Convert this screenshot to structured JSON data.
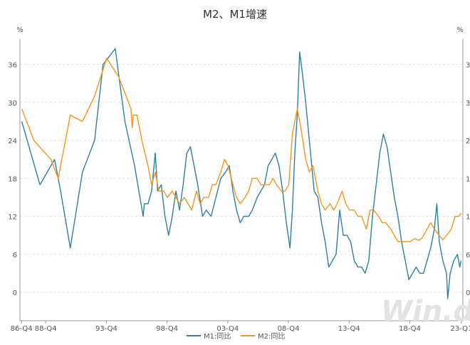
{
  "chart_data": {
    "type": "line",
    "title": "M2、M1增速",
    "y_unit_left": "%",
    "y_unit_right": "%",
    "ylim": [
      -4.5,
      40
    ],
    "yticks": [
      0,
      6,
      12,
      18,
      24,
      30,
      36
    ],
    "xlim": [
      1986.75,
      2023.25
    ],
    "x_tick_labels": [
      {
        "label": "86-Q4",
        "x": 1986.875
      },
      {
        "label": "88-Q4",
        "x": 1988.875
      },
      {
        "label": "93-Q4",
        "x": 1993.875
      },
      {
        "label": "98-Q4",
        "x": 1998.875
      },
      {
        "label": "03-Q4",
        "x": 2003.875
      },
      {
        "label": "08-Q4",
        "x": 2008.875
      },
      {
        "label": "13-Q4",
        "x": 2013.875
      },
      {
        "label": "18-Q4",
        "x": 2018.875
      },
      {
        "label": "23-Q1",
        "x": 2023.125
      }
    ],
    "grid": true,
    "legend_position": "bottom",
    "series": [
      {
        "name": "M1:同比",
        "color": "#2e7ea6",
        "points": [
          [
            1986.9,
            27
          ],
          [
            1988.4,
            17
          ],
          [
            1989.3,
            20
          ],
          [
            1989.6,
            21
          ],
          [
            1990.1,
            16
          ],
          [
            1990.9,
            7
          ],
          [
            1991.9,
            19
          ],
          [
            1992.9,
            24
          ],
          [
            1993.6,
            36
          ],
          [
            1994.6,
            38.5
          ],
          [
            1995.4,
            27
          ],
          [
            1996.2,
            20
          ],
          [
            1996.9,
            12
          ],
          [
            1997.0,
            14
          ],
          [
            1997.3,
            14
          ],
          [
            1997.6,
            16
          ],
          [
            1997.9,
            22
          ],
          [
            1998.1,
            16
          ],
          [
            1998.4,
            17
          ],
          [
            1998.7,
            12
          ],
          [
            1999.0,
            9
          ],
          [
            1999.3,
            12
          ],
          [
            1999.6,
            16
          ],
          [
            1999.9,
            13
          ],
          [
            2000.2,
            17
          ],
          [
            2000.5,
            22
          ],
          [
            2000.8,
            23
          ],
          [
            2001.1,
            20
          ],
          [
            2001.4,
            17
          ],
          [
            2001.8,
            12
          ],
          [
            2002.1,
            13
          ],
          [
            2002.5,
            12
          ],
          [
            2002.9,
            15
          ],
          [
            2003.3,
            18
          ],
          [
            2003.7,
            19
          ],
          [
            2004.0,
            20
          ],
          [
            2004.3,
            16
          ],
          [
            2004.6,
            13
          ],
          [
            2004.9,
            11
          ],
          [
            2005.2,
            12
          ],
          [
            2005.6,
            12
          ],
          [
            2005.9,
            13
          ],
          [
            2006.3,
            15
          ],
          [
            2006.6,
            16
          ],
          [
            2006.9,
            17
          ],
          [
            2007.2,
            20
          ],
          [
            2007.5,
            21
          ],
          [
            2007.8,
            22
          ],
          [
            2008.1,
            20
          ],
          [
            2008.4,
            16
          ],
          [
            2008.7,
            11
          ],
          [
            2009.0,
            7
          ],
          [
            2009.2,
            13
          ],
          [
            2009.4,
            22
          ],
          [
            2009.6,
            28
          ],
          [
            2009.8,
            38
          ],
          [
            2010.0,
            35
          ],
          [
            2010.3,
            30
          ],
          [
            2010.7,
            22
          ],
          [
            2011.0,
            16
          ],
          [
            2011.3,
            15
          ],
          [
            2011.6,
            11
          ],
          [
            2011.9,
            8
          ],
          [
            2012.2,
            4
          ],
          [
            2012.5,
            5
          ],
          [
            2012.8,
            6
          ],
          [
            2013.1,
            13
          ],
          [
            2013.4,
            9
          ],
          [
            2013.7,
            9
          ],
          [
            2014.0,
            8
          ],
          [
            2014.3,
            5
          ],
          [
            2014.6,
            4
          ],
          [
            2014.9,
            4
          ],
          [
            2015.2,
            3
          ],
          [
            2015.5,
            5
          ],
          [
            2015.8,
            12
          ],
          [
            2016.1,
            17
          ],
          [
            2016.4,
            22
          ],
          [
            2016.7,
            25
          ],
          [
            2017.0,
            23
          ],
          [
            2017.3,
            19
          ],
          [
            2017.6,
            15
          ],
          [
            2017.9,
            12
          ],
          [
            2018.2,
            8
          ],
          [
            2018.5,
            5
          ],
          [
            2018.8,
            2
          ],
          [
            2019.1,
            3
          ],
          [
            2019.4,
            4
          ],
          [
            2019.7,
            3
          ],
          [
            2020.0,
            3
          ],
          [
            2020.3,
            5
          ],
          [
            2020.6,
            7
          ],
          [
            2020.9,
            10
          ],
          [
            2021.1,
            14
          ],
          [
            2021.3,
            8
          ],
          [
            2021.6,
            5
          ],
          [
            2021.9,
            3
          ],
          [
            2022.0,
            -1
          ],
          [
            2022.2,
            3
          ],
          [
            2022.5,
            5
          ],
          [
            2022.8,
            6
          ],
          [
            2023.0,
            4
          ],
          [
            2023.1,
            5
          ]
        ]
      },
      {
        "name": "M2:同比",
        "color": "#f4951f",
        "points": [
          [
            1986.9,
            29
          ],
          [
            1987.9,
            24
          ],
          [
            1989.3,
            21
          ],
          [
            1989.9,
            18
          ],
          [
            1990.9,
            28
          ],
          [
            1991.9,
            27
          ],
          [
            1992.9,
            31
          ],
          [
            1993.9,
            37
          ],
          [
            1994.9,
            34
          ],
          [
            1995.9,
            29
          ],
          [
            1996.0,
            26
          ],
          [
            1996.1,
            28
          ],
          [
            1996.4,
            28
          ],
          [
            1996.8,
            24
          ],
          [
            1997.3,
            20
          ],
          [
            1997.6,
            17
          ],
          [
            1997.9,
            19
          ],
          [
            1998.2,
            16
          ],
          [
            1998.6,
            16
          ],
          [
            1998.9,
            15
          ],
          [
            1999.3,
            16
          ],
          [
            1999.6,
            15
          ],
          [
            1999.9,
            14
          ],
          [
            2000.3,
            15
          ],
          [
            2000.6,
            14
          ],
          [
            2000.9,
            13
          ],
          [
            2001.3,
            16
          ],
          [
            2001.6,
            14
          ],
          [
            2001.9,
            15
          ],
          [
            2002.3,
            15
          ],
          [
            2002.6,
            17
          ],
          [
            2002.9,
            17
          ],
          [
            2003.3,
            19
          ],
          [
            2003.6,
            21
          ],
          [
            2003.9,
            20
          ],
          [
            2004.3,
            17
          ],
          [
            2004.6,
            15
          ],
          [
            2004.9,
            14
          ],
          [
            2005.3,
            15
          ],
          [
            2005.6,
            16
          ],
          [
            2005.9,
            18
          ],
          [
            2006.3,
            18
          ],
          [
            2006.6,
            17
          ],
          [
            2006.9,
            17
          ],
          [
            2007.3,
            17
          ],
          [
            2007.6,
            18
          ],
          [
            2007.9,
            17
          ],
          [
            2008.3,
            16
          ],
          [
            2008.6,
            16
          ],
          [
            2008.9,
            17
          ],
          [
            2009.2,
            25
          ],
          [
            2009.6,
            29
          ],
          [
            2009.9,
            26
          ],
          [
            2010.3,
            21
          ],
          [
            2010.6,
            19
          ],
          [
            2010.9,
            20
          ],
          [
            2011.3,
            16
          ],
          [
            2011.6,
            14
          ],
          [
            2011.9,
            13
          ],
          [
            2012.3,
            14
          ],
          [
            2012.6,
            13
          ],
          [
            2012.9,
            14
          ],
          [
            2013.3,
            16
          ],
          [
            2013.6,
            14
          ],
          [
            2013.9,
            13
          ],
          [
            2014.3,
            13
          ],
          [
            2014.6,
            12
          ],
          [
            2014.9,
            12
          ],
          [
            2015.3,
            10
          ],
          [
            2015.6,
            13
          ],
          [
            2015.9,
            13
          ],
          [
            2016.3,
            12
          ],
          [
            2016.6,
            11
          ],
          [
            2016.9,
            11
          ],
          [
            2017.3,
            10
          ],
          [
            2017.6,
            9
          ],
          [
            2017.9,
            8
          ],
          [
            2018.3,
            8
          ],
          [
            2018.6,
            8
          ],
          [
            2018.9,
            8
          ],
          [
            2019.3,
            8.5
          ],
          [
            2019.6,
            8.2
          ],
          [
            2019.9,
            8.6
          ],
          [
            2020.3,
            10
          ],
          [
            2020.6,
            11
          ],
          [
            2020.9,
            10
          ],
          [
            2021.3,
            9
          ],
          [
            2021.6,
            8.3
          ],
          [
            2021.9,
            9
          ],
          [
            2022.3,
            10
          ],
          [
            2022.6,
            12
          ],
          [
            2022.9,
            12
          ],
          [
            2023.1,
            12.5
          ]
        ]
      }
    ]
  },
  "watermark": "Win.d"
}
